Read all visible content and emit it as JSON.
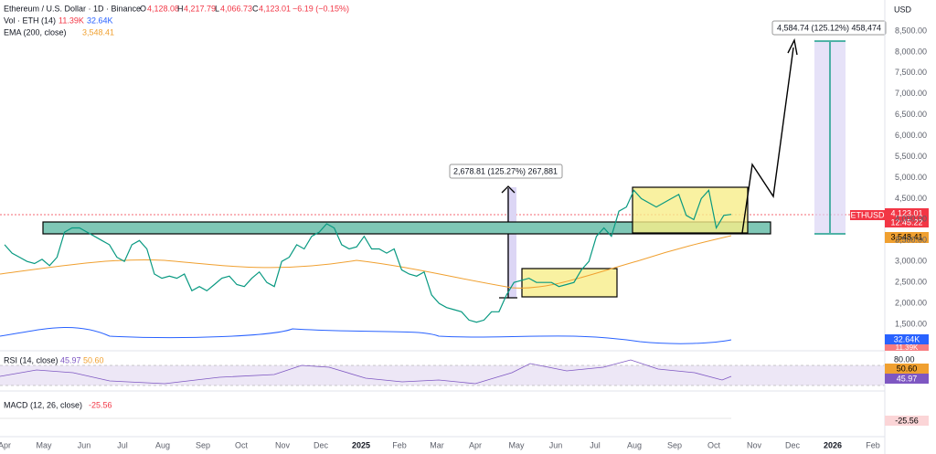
{
  "header": {
    "symbol": "Ethereum / U.S. Dollar · 1D · Binance",
    "open_label": "O",
    "open": "4,128.08",
    "high_label": "H",
    "high": "4,217.79",
    "low_label": "L",
    "low": "4,066.73",
    "close_label": "C",
    "close": "4,123.01",
    "change": "−6.19 (−0.15%)",
    "volume_label": "Vol · ETH (14)",
    "volume": "11.39K",
    "volume_ma": "32.64K",
    "ema_label": "EMA (200, close)",
    "ema": "3,548.41"
  },
  "rsi": {
    "label": "RSI (14, close)",
    "value": "45.97",
    "ma": "50.60",
    "axis_top": "80.00"
  },
  "macd": {
    "label": "MACD (12, 26, close)",
    "value": "-25.56"
  },
  "price_axis": {
    "currency": "USD",
    "labels": [
      "8,500.00",
      "8,000.00",
      "7,500.00",
      "7,000.00",
      "6,500.00",
      "6,000.00",
      "5,500.00",
      "5,000.00",
      "4,500.00",
      "4,000.00",
      "3,500.00",
      "3,000.00",
      "2,500.00",
      "2,000.00",
      "1,500.00"
    ]
  },
  "badges": {
    "symbol": "ETHUSD",
    "price": "4,123.01",
    "countdown": "12:45:22",
    "ema": "3,548.41",
    "volume_ma": "32.64K",
    "volume": "11.39K",
    "rsi_ma": "50.60",
    "rsi": "45.97",
    "macd": "-25.56"
  },
  "time_axis": [
    "Apr",
    "May",
    "Jun",
    "Jul",
    "Aug",
    "Sep",
    "Oct",
    "Nov",
    "Dec",
    "2025",
    "Feb",
    "Mar",
    "Apr",
    "May",
    "Jun",
    "Jul",
    "Aug",
    "Sep",
    "Oct",
    "Nov",
    "Dec",
    "2026",
    "Feb"
  ],
  "annotations": {
    "measure_1": "2,678.81 (125.27%) 267,881",
    "measure_2": "4,584.74 (125.12%) 458,474"
  },
  "price_series": [
    3400,
    3200,
    3100,
    3000,
    2950,
    3050,
    2900,
    3100,
    3700,
    3800,
    3800,
    3700,
    3600,
    3500,
    3400,
    3100,
    3000,
    3400,
    3500,
    3300,
    2700,
    2600,
    2650,
    2600,
    2700,
    2300,
    2400,
    2300,
    2450,
    2600,
    2650,
    2450,
    2400,
    2600,
    2750,
    2500,
    2400,
    3000,
    3100,
    3400,
    3300,
    3600,
    3700,
    3900,
    3800,
    3400,
    3300,
    3350,
    3600,
    3300,
    3300,
    3200,
    3300,
    2800,
    2700,
    2650,
    2750,
    2200,
    2000,
    1900,
    1850,
    1800,
    1600,
    1550,
    1600,
    1800,
    1800,
    2200,
    2500,
    2550,
    2600,
    2500,
    2500,
    2500,
    2400,
    2450,
    2500,
    2800,
    3000,
    3600,
    3800,
    3600,
    4200,
    4300,
    4700,
    4500,
    4400,
    4300,
    4400,
    4500,
    4600,
    4100,
    4000,
    4500,
    4700,
    3800,
    4100,
    4123
  ]
}
